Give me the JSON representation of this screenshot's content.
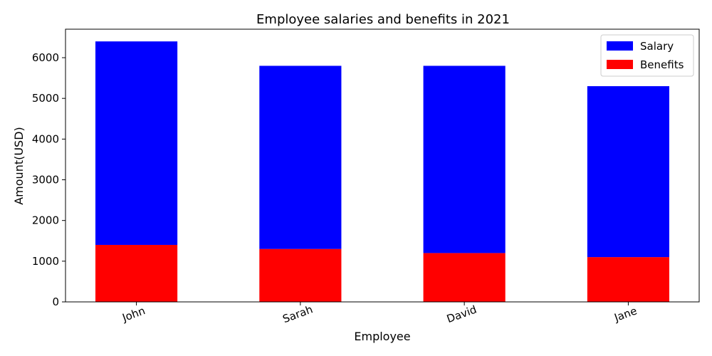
{
  "chart_data": {
    "type": "bar",
    "stacked": true,
    "title": "Employee salaries and benefits in 2021",
    "xlabel": "Employee",
    "ylabel": "Amount(USD)",
    "categories": [
      "John",
      "Sarah",
      "David",
      "Jane"
    ],
    "series": [
      {
        "name": "Salary",
        "color": "#0000ff",
        "values": [
          5000,
          4500,
          4600,
          4200
        ]
      },
      {
        "name": "Benefits",
        "color": "#ff0000",
        "values": [
          1400,
          1300,
          1200,
          1100
        ]
      }
    ],
    "ylim": [
      0,
      6700
    ],
    "yticks": [
      0,
      1000,
      2000,
      3000,
      4000,
      5000,
      6000
    ],
    "grid": false,
    "legend_position": "top-right"
  }
}
